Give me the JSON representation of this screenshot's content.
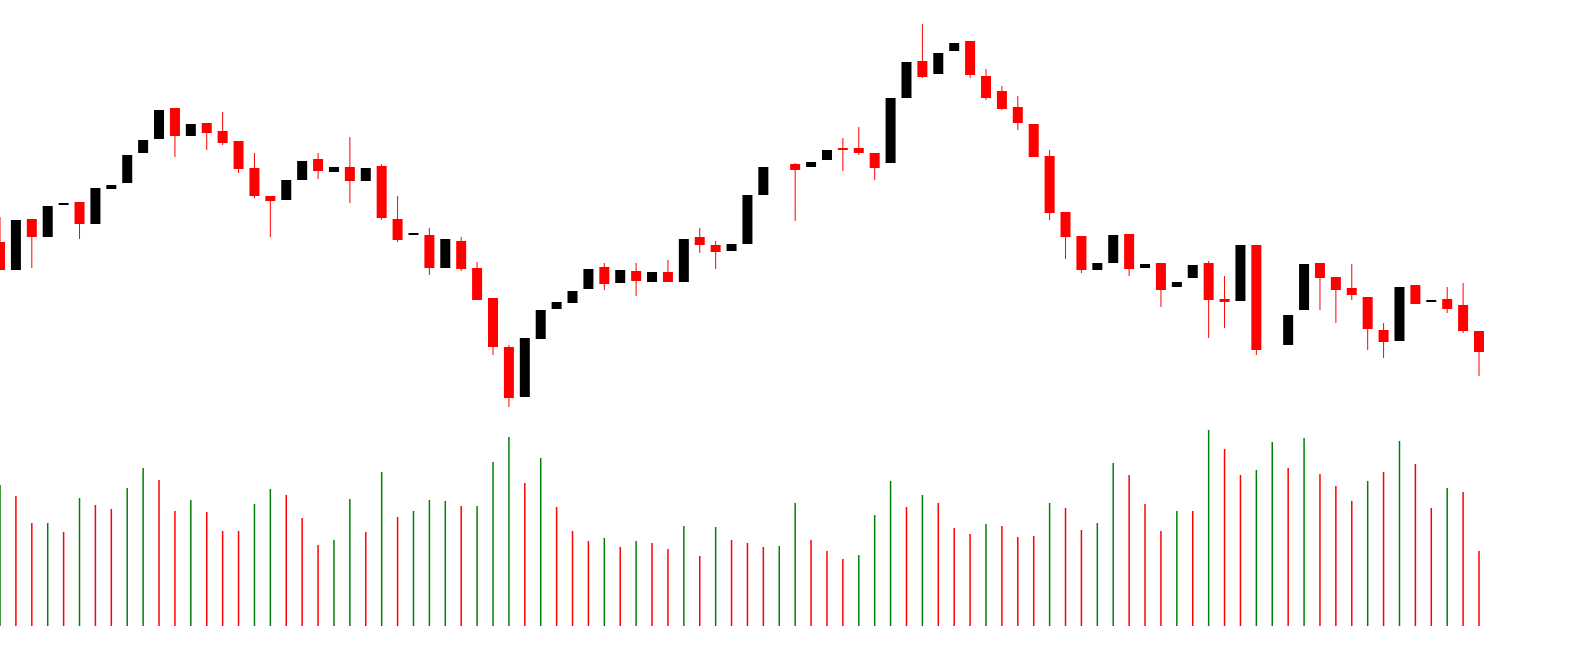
{
  "chart_data": {
    "type": "candlestick",
    "up_color": "#000000",
    "down_color": "#ff0000",
    "ylim": [
      236,
      646
    ],
    "open": [
      404,
      376,
      427,
      409,
      441,
      444,
      422,
      457,
      463,
      493,
      507,
      538,
      510,
      523,
      515,
      505,
      478,
      450,
      446,
      466,
      487,
      474,
      479,
      465,
      480,
      427,
      411,
      411,
      378,
      405,
      378,
      348,
      299,
      249,
      307,
      337,
      343,
      357,
      379,
      363,
      375,
      364,
      374,
      364,
      409,
      401,
      395,
      402,
      451,
      null,
      482,
      479,
      486,
      498,
      498,
      493,
      483,
      548,
      585,
      572,
      595,
      605,
      570,
      555,
      539,
      522,
      490,
      434,
      410,
      376,
      383,
      412,
      378,
      383,
      359,
      368,
      383,
      347,
      345,
      401,
      null,
      301,
      336,
      383,
      369,
      358,
      349,
      316,
      305,
      361,
      344,
      347,
      341,
      315
    ],
    "high": [
      429,
      426,
      427,
      440,
      443,
      444,
      458,
      461,
      491,
      506,
      536,
      538,
      522,
      523,
      534,
      505,
      493,
      450,
      466,
      485,
      493,
      479,
      509,
      478,
      482,
      450,
      413,
      418,
      407,
      409,
      384,
      348,
      301,
      308,
      336,
      344,
      355,
      377,
      383,
      376,
      383,
      374,
      386,
      407,
      418,
      405,
      402,
      451,
      479,
      null,
      483,
      484,
      496,
      508,
      519,
      493,
      548,
      584,
      622,
      593,
      603,
      605,
      577,
      560,
      550,
      522,
      496,
      434,
      410,
      383,
      411,
      412,
      382,
      383,
      364,
      381,
      385,
      370,
      401,
      401,
      null,
      331,
      382,
      383,
      369,
      382,
      349,
      323,
      359,
      361,
      346,
      359,
      363,
      315
    ],
    "low": [
      376,
      376,
      378,
      409,
      441,
      407,
      422,
      457,
      463,
      493,
      507,
      489,
      510,
      496,
      501,
      473,
      448,
      409,
      446,
      466,
      467,
      474,
      443,
      465,
      426,
      404,
      411,
      371,
      378,
      375,
      346,
      291,
      239,
      249,
      307,
      337,
      343,
      357,
      356,
      363,
      350,
      364,
      364,
      364,
      393,
      377,
      395,
      402,
      451,
      null,
      425,
      479,
      486,
      475,
      491,
      466,
      483,
      548,
      568,
      572,
      595,
      568,
      546,
      536,
      516,
      489,
      426,
      387,
      373,
      376,
      383,
      370,
      378,
      339,
      359,
      368,
      308,
      318,
      345,
      291,
      null,
      301,
      336,
      336,
      323,
      346,
      296,
      288,
      305,
      342,
      344,
      333,
      313,
      270
    ],
    "close": [
      376,
      426,
      409,
      440,
      443,
      422,
      458,
      461,
      491,
      506,
      536,
      510,
      522,
      513,
      503,
      477,
      450,
      445,
      466,
      485,
      475,
      479,
      465,
      478,
      428,
      406,
      413,
      378,
      407,
      377,
      346,
      299,
      248,
      308,
      336,
      344,
      355,
      377,
      362,
      376,
      365,
      374,
      364,
      407,
      401,
      394,
      402,
      451,
      479,
      null,
      476,
      484,
      496,
      496,
      493,
      478,
      548,
      584,
      569,
      593,
      603,
      571,
      548,
      537,
      523,
      489,
      433,
      409,
      376,
      383,
      411,
      377,
      382,
      356,
      364,
      381,
      346,
      344,
      401,
      296,
      null,
      331,
      382,
      368,
      356,
      351,
      317,
      304,
      359,
      342,
      346,
      337,
      315,
      294
    ],
    "vlim": [
      0,
      206
    ],
    "volume": [
      141,
      130,
      103,
      103,
      94,
      128,
      121,
      117,
      138,
      158,
      146,
      115,
      126,
      114,
      95,
      95,
      122,
      137,
      131,
      108,
      81,
      86,
      127,
      94,
      154,
      109,
      115,
      126,
      125,
      120,
      120,
      164,
      189,
      143,
      168,
      119,
      95,
      85,
      88,
      79,
      85,
      83,
      77,
      100,
      70,
      99,
      86,
      83,
      79,
      80,
      123,
      86,
      75,
      67,
      71,
      111,
      145,
      119,
      131,
      123,
      98,
      92,
      102,
      100,
      89,
      90,
      123,
      118,
      96,
      103,
      163,
      151,
      122,
      95,
      115,
      115,
      196,
      177,
      151,
      156,
      184,
      158,
      188,
      152,
      140,
      125,
      145,
      154,
      185,
      162,
      118,
      138,
      134,
      75
    ],
    "volume_colors": [
      "#008000",
      "#ff0000",
      "#ff0000",
      "#008000",
      "#ff0000",
      "#008000",
      "#ff0000",
      "#ff0000",
      "#008000",
      "#008000",
      "#ff0000",
      "#ff0000",
      "#008000",
      "#ff0000",
      "#ff0000",
      "#ff0000",
      "#008000",
      "#008000",
      "#ff0000",
      "#ff0000",
      "#ff0000",
      "#008000",
      "#008000",
      "#ff0000",
      "#008000",
      "#ff0000",
      "#008000",
      "#008000",
      "#008000",
      "#ff0000",
      "#008000",
      "#008000",
      "#008000",
      "#ff0000",
      "#008000",
      "#ff0000",
      "#ff0000",
      "#ff0000",
      "#008000",
      "#ff0000",
      "#008000",
      "#ff0000",
      "#ff0000",
      "#008000",
      "#ff0000",
      "#008000",
      "#ff0000",
      "#ff0000",
      "#ff0000",
      "#008000",
      "#008000",
      "#ff0000",
      "#ff0000",
      "#ff0000",
      "#008000",
      "#008000",
      "#008000",
      "#ff0000",
      "#008000",
      "#ff0000",
      "#ff0000",
      "#ff0000",
      "#008000",
      "#ff0000",
      "#ff0000",
      "#ff0000",
      "#008000",
      "#ff0000",
      "#ff0000",
      "#008000",
      "#008000",
      "#ff0000",
      "#ff0000",
      "#ff0000",
      "#008000",
      "#ff0000",
      "#008000",
      "#ff0000",
      "#ff0000",
      "#008000",
      "#008000",
      "#ff0000",
      "#008000",
      "#ff0000",
      "#ff0000",
      "#ff0000",
      "#008000",
      "#ff0000",
      "#008000",
      "#ff0000",
      "#ff0000",
      "#008000",
      "#ff0000",
      "#ff0000"
    ]
  }
}
